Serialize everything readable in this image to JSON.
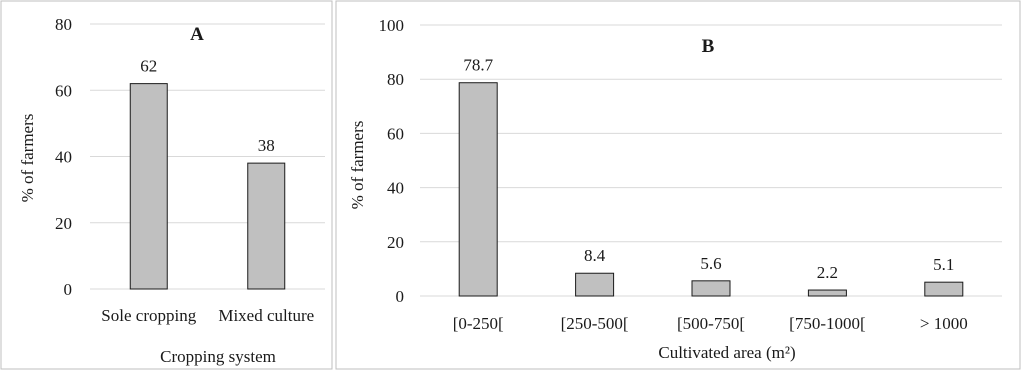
{
  "chart_data": [
    {
      "type": "bar",
      "panel_label": "A",
      "categories": [
        "Sole cropping",
        "Mixed culture"
      ],
      "values": [
        62,
        38
      ],
      "data_labels": [
        "62",
        "38"
      ],
      "title": "",
      "xlabel": "Cropping system",
      "ylabel": "% of farmers",
      "ylim": [
        0,
        80
      ],
      "yticks": [
        "0",
        "20",
        "40",
        "60",
        "80"
      ],
      "grid": true,
      "bar_color": "#c0c0c0"
    },
    {
      "type": "bar",
      "panel_label": "B",
      "categories": [
        "[0-250[",
        "[250-500[",
        "[500-750[",
        "[750-1000[",
        "> 1000"
      ],
      "values": [
        78.7,
        8.4,
        5.6,
        2.2,
        5.1
      ],
      "data_labels": [
        "78.7",
        "8.4",
        "5.6",
        "2.2",
        "5.1"
      ],
      "title": "",
      "xlabel": "Cultivated area (m²)",
      "ylabel": "% of farmers",
      "ylim": [
        0,
        100
      ],
      "yticks": [
        "0",
        "20",
        "40",
        "60",
        "80",
        "100"
      ],
      "grid": true,
      "bar_color": "#c0c0c0"
    }
  ]
}
